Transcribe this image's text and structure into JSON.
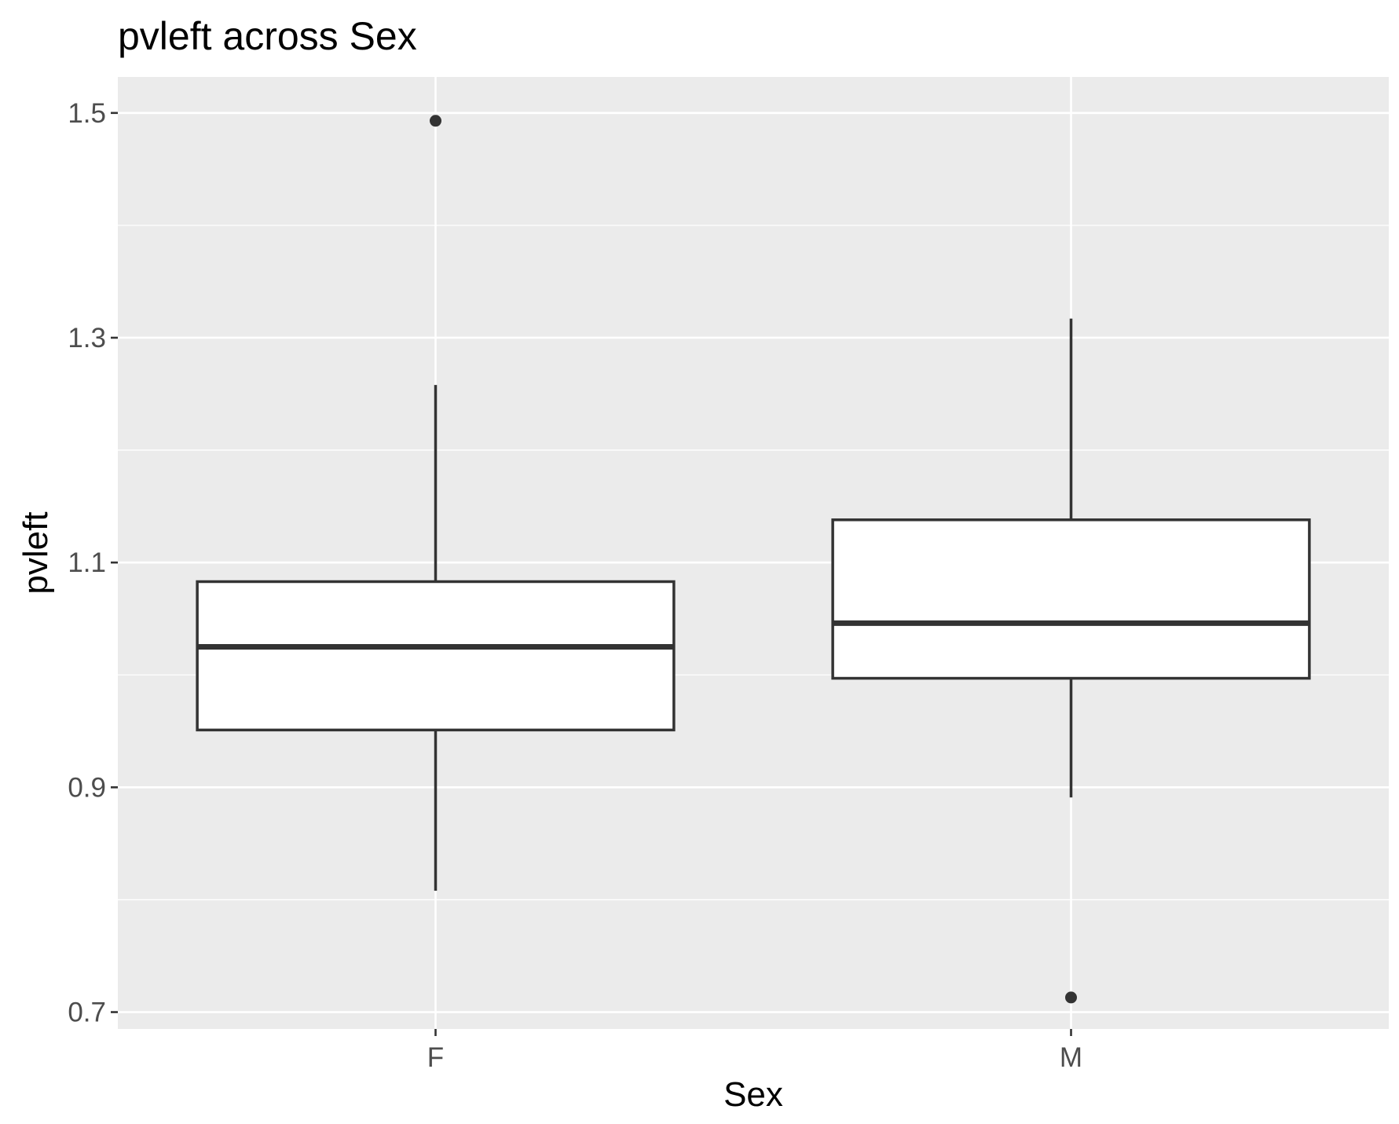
{
  "chart_data": {
    "type": "boxplot",
    "title": "pvleft across Sex",
    "xlabel": "Sex",
    "ylabel": "pvleft",
    "categories": [
      "F",
      "M"
    ],
    "ylim": [
      0.685,
      1.532
    ],
    "yticks": [
      0.7,
      0.9,
      1.1,
      1.3,
      1.5
    ],
    "ytick_labels": [
      "0.7",
      "0.9",
      "1.1",
      "1.3",
      "1.5"
    ],
    "grid": true,
    "legend": "none",
    "boxes": [
      {
        "category": "F",
        "whisker_low": 0.808,
        "q1": 0.951,
        "median": 1.025,
        "q3": 1.083,
        "whisker_high": 1.258,
        "outliers": [
          1.493
        ]
      },
      {
        "category": "M",
        "whisker_low": 0.891,
        "q1": 0.997,
        "median": 1.046,
        "q3": 1.138,
        "whisker_high": 1.317,
        "outliers": [
          0.713
        ]
      }
    ],
    "colors": {
      "panel_background": "#ebebeb",
      "grid": "#ffffff",
      "box_fill": "#ffffff",
      "box_stroke": "#333333",
      "tick_label": "#4d4d4d",
      "text": "#000000"
    }
  }
}
